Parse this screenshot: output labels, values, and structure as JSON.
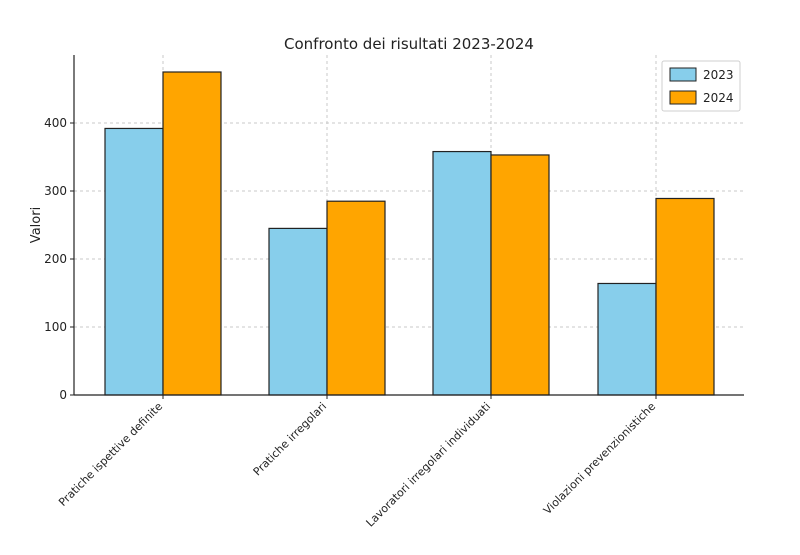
{
  "chart_data": {
    "type": "bar",
    "title": "Confronto dei risultati 2023-2024",
    "xlabel": "",
    "ylabel": "Valori",
    "categories": [
      "Pratiche ispettive definite",
      "Pratiche irregolari",
      "Lavoratori irregolari individuati",
      "Violazioni prevenzionistiche"
    ],
    "series": [
      {
        "name": "2023",
        "values": [
          392,
          245,
          358,
          164
        ],
        "color": "#87CEEB"
      },
      {
        "name": "2024",
        "values": [
          475,
          285,
          353,
          289
        ],
        "color": "#FFA500"
      }
    ],
    "ylim": [
      0,
      500
    ],
    "yticks": [
      0,
      100,
      200,
      300,
      400
    ],
    "grid": true,
    "legend_position": "top-right"
  }
}
